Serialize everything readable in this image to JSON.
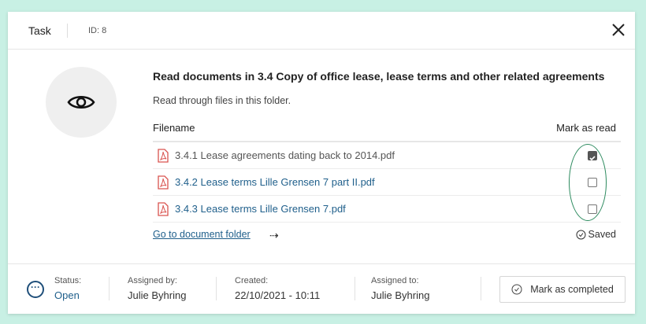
{
  "header": {
    "title": "Task",
    "id_label": "ID: 8"
  },
  "task": {
    "title": "Read documents in 3.4 Copy of office lease, lease terms and other related agreements",
    "description": "Read through files in this folder."
  },
  "table": {
    "col_filename": "Filename",
    "col_mark": "Mark as read",
    "files": [
      {
        "name": "3.4.1 Lease agreements dating back to 2014.pdf",
        "read": true
      },
      {
        "name": "3.4.2 Lease terms Lille Grensen 7 part II.pdf",
        "read": false
      },
      {
        "name": "3.4.3 Lease terms Lille Grensen 7.pdf",
        "read": false
      }
    ]
  },
  "go_folder": "Go to document folder",
  "saved": "Saved",
  "footer": {
    "status_label": "Status:",
    "status_value": "Open",
    "assigned_by_label": "Assigned by:",
    "assigned_by": "Julie Byhring",
    "created_label": "Created:",
    "created": "22/10/2021 - 10:11",
    "assigned_to_label": "Assigned to:",
    "assigned_to": "Julie Byhring",
    "complete_button": "Mark as completed"
  },
  "colors": {
    "background": "#c8f0e4",
    "link": "#1f5f8b",
    "pdf": "#d9534f",
    "highlight": "#2c8a5e"
  }
}
